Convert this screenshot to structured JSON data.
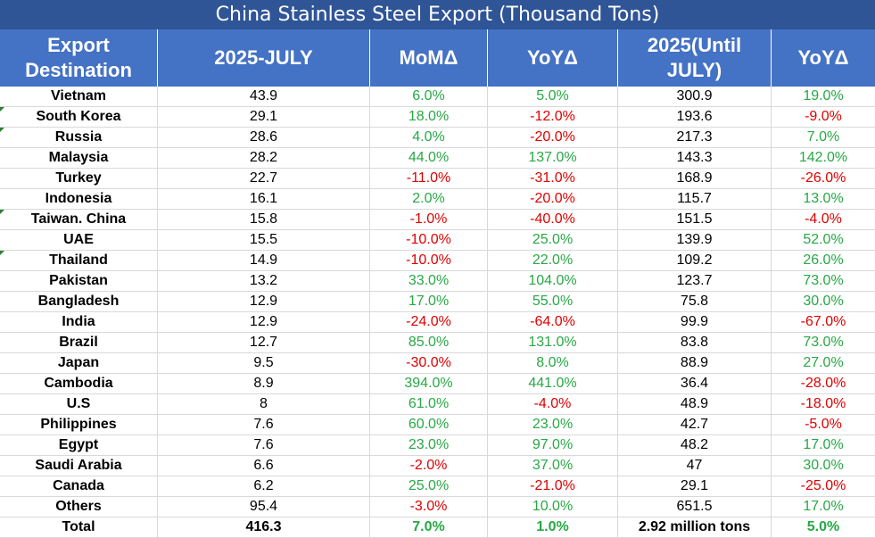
{
  "title": "China Stainless Steel Export  (Thousand Tons)",
  "headers": [
    "Export Destination",
    "2025-JULY",
    "MoMΔ",
    "YoYΔ",
    "2025(Until JULY)",
    "YoYΔ"
  ],
  "colors": {
    "positive": "#27a844",
    "negative": "#e00000",
    "title_bg": "#2f5597",
    "header_bg": "#4472c4"
  },
  "chart_data": {
    "type": "table",
    "title": "China Stainless Steel Export  (Thousand Tons)",
    "columns": [
      "Export Destination",
      "2025-JULY",
      "MoMΔ",
      "YoYΔ",
      "2025(Until JULY)",
      "YoYΔ"
    ],
    "rows": [
      [
        "Vietnam",
        "43.9",
        "6.0%",
        "5.0%",
        "300.9",
        "19.0%"
      ],
      [
        "South Korea",
        "29.1",
        "18.0%",
        "-12.0%",
        "193.6",
        "-9.0%"
      ],
      [
        "Russia",
        "28.6",
        "4.0%",
        "-20.0%",
        "217.3",
        "7.0%"
      ],
      [
        "Malaysia",
        "28.2",
        "44.0%",
        "137.0%",
        "143.3",
        "142.0%"
      ],
      [
        "Turkey",
        "22.7",
        "-11.0%",
        "-31.0%",
        "168.9",
        "-26.0%"
      ],
      [
        "Indonesia",
        "16.1",
        "2.0%",
        "-20.0%",
        "115.7",
        "13.0%"
      ],
      [
        "Taiwan. China",
        "15.8",
        "-1.0%",
        "-40.0%",
        "151.5",
        "-4.0%"
      ],
      [
        "UAE",
        "15.5",
        "-10.0%",
        "25.0%",
        "139.9",
        "52.0%"
      ],
      [
        "Thailand",
        "14.9",
        "-10.0%",
        "22.0%",
        "109.2",
        "26.0%"
      ],
      [
        "Pakistan",
        "13.2",
        "33.0%",
        "104.0%",
        "123.7",
        "73.0%"
      ],
      [
        "Bangladesh",
        "12.9",
        "17.0%",
        "55.0%",
        "75.8",
        "30.0%"
      ],
      [
        "India",
        "12.9",
        "-24.0%",
        "-64.0%",
        "99.9",
        "-67.0%"
      ],
      [
        "Brazil",
        "12.7",
        "85.0%",
        "131.0%",
        "83.8",
        "73.0%"
      ],
      [
        "Japan",
        "9.5",
        "-30.0%",
        "8.0%",
        "88.9",
        "27.0%"
      ],
      [
        "Cambodia",
        "8.9",
        "394.0%",
        "441.0%",
        "36.4",
        "-28.0%"
      ],
      [
        "U.S",
        "8",
        "61.0%",
        "-4.0%",
        "48.9",
        "-18.0%"
      ],
      [
        "Philippines",
        "7.6",
        "60.0%",
        "23.0%",
        "42.7",
        "-5.0%"
      ],
      [
        "Egypt",
        "7.6",
        "23.0%",
        "97.0%",
        "48.2",
        "17.0%"
      ],
      [
        "Saudi Arabia",
        "6.6",
        "-2.0%",
        "37.0%",
        "47",
        "30.0%"
      ],
      [
        "Canada",
        "6.2",
        "25.0%",
        "-21.0%",
        "29.1",
        "-25.0%"
      ],
      [
        "Others",
        "95.4",
        "-3.0%",
        "10.0%",
        "651.5",
        "17.0%"
      ],
      [
        "Total",
        "416.3",
        "7.0%",
        "1.0%",
        "2.92 million tons",
        "5.0%"
      ]
    ]
  }
}
